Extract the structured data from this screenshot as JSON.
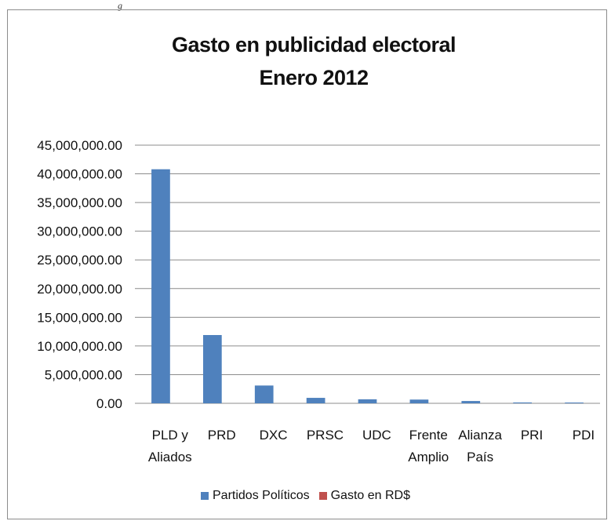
{
  "top_fragment": "g",
  "chart_data": {
    "type": "bar",
    "title": "Gasto en publicidad electoral",
    "subtitle": "Enero 2012",
    "categories": [
      [
        "PLD y",
        "Aliados"
      ],
      [
        "PRD"
      ],
      [
        "DXC"
      ],
      [
        "PRSC"
      ],
      [
        "UDC"
      ],
      [
        "Frente",
        "Amplio"
      ],
      [
        "Alianza",
        "País"
      ],
      [
        "PRI"
      ],
      [
        "PDI"
      ]
    ],
    "series": [
      {
        "name": "Partidos Políticos",
        "color": "#4f81bd",
        "values": [
          40800000,
          11900000,
          3100000,
          950000,
          700000,
          650000,
          400000,
          150000,
          120000
        ]
      },
      {
        "name": "Gasto en RD$",
        "color": "#c0504d",
        "values": [
          0,
          0,
          0,
          0,
          0,
          0,
          0,
          0,
          0
        ]
      }
    ],
    "yticks": [
      "0.00",
      "5,000,000.00",
      "10,000,000.00",
      "15,000,000.00",
      "20,000,000.00",
      "25,000,000.00",
      "30,000,000.00",
      "35,000,000.00",
      "40,000,000.00",
      "45,000,000.00"
    ],
    "ylim": [
      0,
      45000000
    ],
    "grid": true,
    "legend_position": "bottom"
  }
}
